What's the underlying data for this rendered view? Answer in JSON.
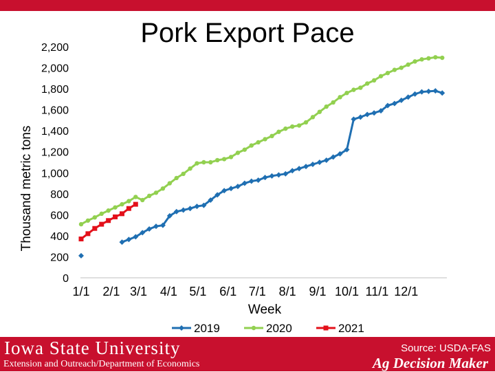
{
  "colors": {
    "brand_red": "#c8102e",
    "series_2019": "#1f6fb2",
    "series_2020": "#92d050",
    "series_2021": "#e3101a"
  },
  "footer": {
    "university": "Iowa State University",
    "department": "Extension and Outreach/Department of Economics",
    "brand": "Ag Decision Maker",
    "source": "Source: USDA-FAS"
  },
  "chart_data": {
    "type": "line",
    "title": "Pork Export Pace",
    "xlabel": "Week",
    "ylabel": "Thousand metric tons",
    "ylim": [
      0,
      2200
    ],
    "yticks": [
      0,
      200,
      400,
      600,
      800,
      1000,
      1200,
      1400,
      1600,
      1800,
      2000,
      2200
    ],
    "ytick_labels": [
      "0",
      "200",
      "400",
      "600",
      "800",
      "1,000",
      "1,200",
      "1,400",
      "1,600",
      "1,800",
      "2,000",
      "2,200"
    ],
    "xtick_labels": [
      "1/1",
      "2/1",
      "3/1",
      "4/1",
      "5/1",
      "6/1",
      "7/1",
      "8/1",
      "9/1",
      "10/1",
      "11/1",
      "12/1"
    ],
    "grid": false,
    "legend": "bottom",
    "series": [
      {
        "name": "2019",
        "marker": "diamond",
        "values": [
          [
            1,
            210
          ],
          [
            7,
            340
          ],
          [
            8,
            365
          ],
          [
            9,
            390
          ],
          [
            10,
            430
          ],
          [
            11,
            465
          ],
          [
            12,
            490
          ],
          [
            13,
            500
          ],
          [
            14,
            590
          ],
          [
            15,
            630
          ],
          [
            16,
            645
          ],
          [
            17,
            660
          ],
          [
            18,
            680
          ],
          [
            19,
            690
          ],
          [
            20,
            740
          ],
          [
            21,
            790
          ],
          [
            22,
            830
          ],
          [
            23,
            850
          ],
          [
            24,
            870
          ],
          [
            25,
            900
          ],
          [
            26,
            920
          ],
          [
            27,
            930
          ],
          [
            28,
            955
          ],
          [
            29,
            970
          ],
          [
            30,
            980
          ],
          [
            31,
            990
          ],
          [
            32,
            1020
          ],
          [
            33,
            1040
          ],
          [
            34,
            1060
          ],
          [
            35,
            1080
          ],
          [
            36,
            1100
          ],
          [
            37,
            1120
          ],
          [
            38,
            1150
          ],
          [
            39,
            1180
          ],
          [
            40,
            1220
          ],
          [
            41,
            1510
          ],
          [
            42,
            1530
          ],
          [
            43,
            1555
          ],
          [
            44,
            1570
          ],
          [
            45,
            1590
          ],
          [
            46,
            1640
          ],
          [
            47,
            1660
          ],
          [
            48,
            1690
          ],
          [
            49,
            1720
          ],
          [
            50,
            1750
          ],
          [
            51,
            1770
          ],
          [
            52,
            1775
          ],
          [
            53,
            1780
          ],
          [
            54,
            1760
          ]
        ]
      },
      {
        "name": "2020",
        "marker": "circle",
        "values": [
          [
            1,
            510
          ],
          [
            2,
            545
          ],
          [
            3,
            575
          ],
          [
            4,
            610
          ],
          [
            5,
            640
          ],
          [
            6,
            670
          ],
          [
            7,
            700
          ],
          [
            8,
            730
          ],
          [
            9,
            770
          ],
          [
            10,
            740
          ],
          [
            11,
            780
          ],
          [
            12,
            810
          ],
          [
            13,
            850
          ],
          [
            14,
            900
          ],
          [
            15,
            950
          ],
          [
            16,
            990
          ],
          [
            17,
            1040
          ],
          [
            18,
            1090
          ],
          [
            19,
            1100
          ],
          [
            20,
            1100
          ],
          [
            21,
            1120
          ],
          [
            22,
            1130
          ],
          [
            23,
            1150
          ],
          [
            24,
            1190
          ],
          [
            25,
            1220
          ],
          [
            26,
            1260
          ],
          [
            27,
            1290
          ],
          [
            28,
            1320
          ],
          [
            29,
            1350
          ],
          [
            30,
            1390
          ],
          [
            31,
            1420
          ],
          [
            32,
            1440
          ],
          [
            33,
            1450
          ],
          [
            34,
            1480
          ],
          [
            35,
            1530
          ],
          [
            36,
            1580
          ],
          [
            37,
            1630
          ],
          [
            38,
            1670
          ],
          [
            39,
            1720
          ],
          [
            40,
            1760
          ],
          [
            41,
            1790
          ],
          [
            42,
            1810
          ],
          [
            43,
            1850
          ],
          [
            44,
            1880
          ],
          [
            45,
            1920
          ],
          [
            46,
            1950
          ],
          [
            47,
            1980
          ],
          [
            48,
            2000
          ],
          [
            49,
            2030
          ],
          [
            50,
            2060
          ],
          [
            51,
            2080
          ],
          [
            52,
            2090
          ],
          [
            53,
            2100
          ],
          [
            54,
            2095
          ]
        ]
      },
      {
        "name": "2021",
        "marker": "square",
        "values": [
          [
            1,
            370
          ],
          [
            2,
            420
          ],
          [
            3,
            470
          ],
          [
            4,
            510
          ],
          [
            5,
            545
          ],
          [
            6,
            580
          ],
          [
            7,
            610
          ],
          [
            8,
            660
          ],
          [
            9,
            700
          ]
        ]
      }
    ]
  }
}
